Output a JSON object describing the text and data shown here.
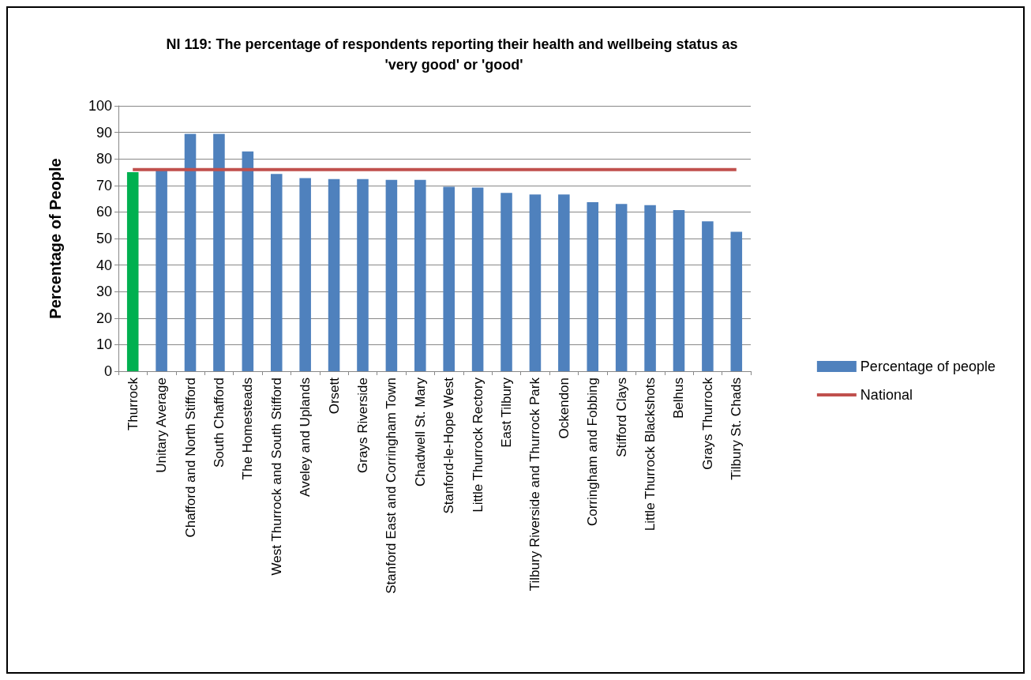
{
  "chart_data": {
    "type": "bar",
    "title": "NI 119: The percentage of respondents reporting their health and wellbeing status as 'very good' or 'good'",
    "ylabel": "Percentage of People",
    "categories": [
      "Thurrock",
      "Unitary Average",
      "Chafford and North Stifford",
      "South Chafford",
      "The Homesteads",
      "West Thurrock and South Stifford",
      "Aveley and Uplands",
      "Orsett",
      "Grays Riverside",
      "Stanford East and Corringham Town",
      "Chadwell St. Mary",
      "Stanford-le-Hope West",
      "Little Thurrock Rectory",
      "East Tilbury",
      "Tilbury Riverside and Thurrock Park",
      "Ockendon",
      "Corringham and Fobbing",
      "Stifford Clays",
      "Little Thurrock Blackshots",
      "Belhus",
      "Grays Thurrock",
      "Tilbury St. Chads"
    ],
    "series": [
      {
        "name": "Percentage of people",
        "color": "#4f81bd",
        "colors": [
          "#00b050",
          "#4f81bd",
          "#4f81bd",
          "#4f81bd",
          "#4f81bd",
          "#4f81bd",
          "#4f81bd",
          "#4f81bd",
          "#4f81bd",
          "#4f81bd",
          "#4f81bd",
          "#4f81bd",
          "#4f81bd",
          "#4f81bd",
          "#4f81bd",
          "#4f81bd",
          "#4f81bd",
          "#4f81bd",
          "#4f81bd",
          "#4f81bd",
          "#4f81bd",
          "#4f81bd"
        ],
        "values": [
          75,
          76,
          89.4,
          89.4,
          82.8,
          74.3,
          72.8,
          72.4,
          72.4,
          72.1,
          72.1,
          69.5,
          69.2,
          67.2,
          66.6,
          66.6,
          63.7,
          63.0,
          62.6,
          60.7,
          56.5,
          52.5
        ]
      },
      {
        "name": "National",
        "type": "line",
        "color": "#c0504d",
        "marker": "none",
        "values": [
          76,
          76,
          76,
          76,
          76,
          76,
          76,
          76,
          76,
          76,
          76,
          76,
          76,
          76,
          76,
          76,
          76,
          76,
          76,
          76,
          76,
          76
        ]
      }
    ],
    "ylim": [
      0,
      100
    ],
    "yticks": [
      0,
      10,
      20,
      30,
      40,
      50,
      60,
      70,
      80,
      90,
      100
    ],
    "grid": "y",
    "legend": "right"
  }
}
